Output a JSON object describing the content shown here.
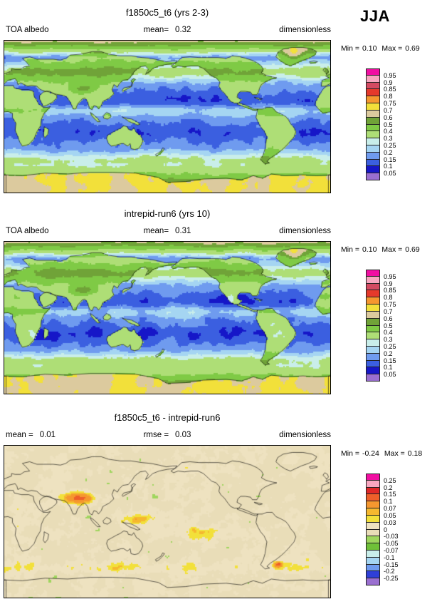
{
  "season_label": "JJA",
  "panels": [
    {
      "title": "f1850c5_t6 (yrs 2-3)",
      "row": {
        "left_label": "TOA albedo",
        "center_label": "mean=",
        "center_value": "0.32",
        "right_label": "dimensionless"
      },
      "min_label": "Min =",
      "min_value": "0.10",
      "max_label": "Max =",
      "max_value": "0.69"
    },
    {
      "title": "intrepid-run6 (yrs 10)",
      "row": {
        "left_label": "TOA albedo",
        "center_label": "mean=",
        "center_value": "0.31",
        "right_label": "dimensionless"
      },
      "min_label": "Min =",
      "min_value": "0.10",
      "max_label": "Max =",
      "max_value": "0.69"
    },
    {
      "title": "f1850c5_t6 - intrepid-run6",
      "row": {
        "left_label": "mean =",
        "left_value": "0.01",
        "center_label": "rmse =",
        "center_value": "0.03",
        "right_label": "dimensionless"
      },
      "min_label": "Min =",
      "min_value": "-0.24",
      "max_label": "Max =",
      "max_value": "0.18"
    }
  ],
  "colorbar_albedo": {
    "labels_ascending": [
      "0.05",
      "0.1",
      "0.15",
      "0.2",
      "0.25",
      "0.3",
      "0.4",
      "0.5",
      "0.6",
      "0.7",
      "0.75",
      "0.8",
      "0.85",
      "0.9",
      "0.95"
    ],
    "colors_ascending": [
      "#9a6fd0",
      "#1616c8",
      "#3b5fe0",
      "#6f9bef",
      "#a5d5f2",
      "#c9eeea",
      "#aede76",
      "#7fca45",
      "#70a338",
      "#dcca9e",
      "#f2e03a",
      "#f5972f",
      "#e5392b",
      "#d44a62",
      "#f9a7c0",
      "#f10fa2"
    ]
  },
  "colorbar_diff": {
    "labels_ascending": [
      "-0.25",
      "-0.2",
      "-0.15",
      "-0.1",
      "-0.07",
      "-0.05",
      "-0.03",
      "0",
      "0.03",
      "0.05",
      "0.07",
      "0.1",
      "0.15",
      "0.2",
      "0.25"
    ],
    "colors_ascending": [
      "#9a6fd0",
      "#2f3fd8",
      "#6f9bef",
      "#a5d5f2",
      "#c9eeea",
      "#6fc038",
      "#9fd65e",
      "#e9ddb8",
      "#eee2c0",
      "#f2e03a",
      "#f5b82f",
      "#f5972f",
      "#ee5f2a",
      "#e02828",
      "#f9a7c0",
      "#f10fa2"
    ]
  },
  "chart_data": [
    {
      "type": "heatmap",
      "subtype": "global filled-contour map, equirectangular, lon 0-360E, lat 90S-90N",
      "title": "f1850c5_t6 (yrs 2-3)",
      "variable": "TOA albedo",
      "units": "dimensionless",
      "season": "JJA",
      "mean": 0.32,
      "min": 0.1,
      "max": 0.69,
      "contour_levels": [
        0.05,
        0.1,
        0.15,
        0.2,
        0.25,
        0.3,
        0.4,
        0.5,
        0.6,
        0.7,
        0.75,
        0.8,
        0.85,
        0.9,
        0.95
      ],
      "palette_low_to_high": [
        "#9a6fd0",
        "#1616c8",
        "#3b5fe0",
        "#6f9bef",
        "#a5d5f2",
        "#c9eeea",
        "#aede76",
        "#7fca45",
        "#70a338",
        "#dcca9e",
        "#f2e03a",
        "#f5972f",
        "#e5392b",
        "#d44a62",
        "#f9a7c0",
        "#f10fa2"
      ]
    },
    {
      "type": "heatmap",
      "subtype": "global filled-contour map, equirectangular, lon 0-360E, lat 90S-90N",
      "title": "intrepid-run6 (yrs 10)",
      "variable": "TOA albedo",
      "units": "dimensionless",
      "season": "JJA",
      "mean": 0.31,
      "min": 0.1,
      "max": 0.69,
      "contour_levels": [
        0.05,
        0.1,
        0.15,
        0.2,
        0.25,
        0.3,
        0.4,
        0.5,
        0.6,
        0.7,
        0.75,
        0.8,
        0.85,
        0.9,
        0.95
      ],
      "palette_low_to_high": [
        "#9a6fd0",
        "#1616c8",
        "#3b5fe0",
        "#6f9bef",
        "#a5d5f2",
        "#c9eeea",
        "#aede76",
        "#7fca45",
        "#70a338",
        "#dcca9e",
        "#f2e03a",
        "#f5972f",
        "#e5392b",
        "#d44a62",
        "#f9a7c0",
        "#f10fa2"
      ]
    },
    {
      "type": "heatmap",
      "subtype": "difference map (case1 minus case2), equirectangular global",
      "title": "f1850c5_t6 - intrepid-run6",
      "variable": "TOA albedo difference",
      "units": "dimensionless",
      "season": "JJA",
      "mean": 0.01,
      "rmse": 0.03,
      "min": -0.24,
      "max": 0.18,
      "contour_levels": [
        -0.25,
        -0.2,
        -0.15,
        -0.1,
        -0.07,
        -0.05,
        -0.03,
        0,
        0.03,
        0.05,
        0.07,
        0.1,
        0.15,
        0.2,
        0.25
      ],
      "palette_low_to_high": [
        "#9a6fd0",
        "#2f3fd8",
        "#6f9bef",
        "#a5d5f2",
        "#c9eeea",
        "#6fc038",
        "#9fd65e",
        "#e9ddb8",
        "#eee2c0",
        "#f2e03a",
        "#f5b82f",
        "#f5972f",
        "#ee5f2a",
        "#e02828",
        "#f9a7c0",
        "#f10fa2"
      ]
    }
  ]
}
